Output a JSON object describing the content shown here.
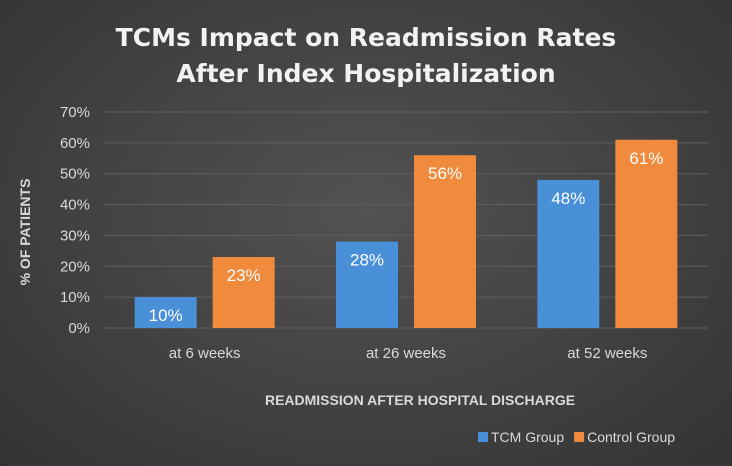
{
  "chart_data": {
    "type": "bar",
    "title_lines": [
      "TCMs Impact on Readmission Rates",
      "After Index Hospitalization"
    ],
    "xlabel": "READMISSION AFTER HOSPITAL DISCHARGE",
    "ylabel": "% OF PATIENTS",
    "categories": [
      "at 6 weeks",
      "at 26 weeks",
      "at 52 weeks"
    ],
    "series": [
      {
        "name": "TCM Group",
        "values": [
          10,
          28,
          48
        ],
        "color": "#4a90d9",
        "labels": [
          "10%",
          "28%",
          "48%"
        ]
      },
      {
        "name": "Control Group",
        "values": [
          23,
          56,
          61
        ],
        "color": "#f08a3c",
        "labels": [
          "23%",
          "56%",
          "61%"
        ]
      }
    ],
    "ylim": [
      0,
      70
    ],
    "yticks": [
      0,
      10,
      20,
      30,
      40,
      50,
      60,
      70
    ],
    "ytick_labels": [
      "0%",
      "10%",
      "20%",
      "30%",
      "40%",
      "50%",
      "60%",
      "70%"
    ],
    "grid": true,
    "legend_position": "bottom-right"
  }
}
